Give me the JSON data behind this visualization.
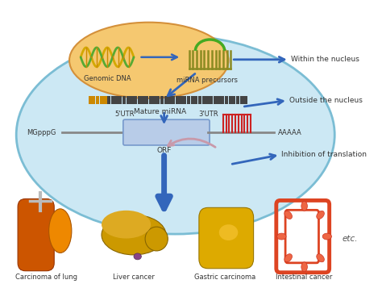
{
  "labels": {
    "genomic_dna": "Genomic DNA",
    "mirna_precursors": "miRNA precursors",
    "within_nucleus": "Within the nucleus",
    "outside_nucleus": "Outside the nucleus",
    "mature_mirna": "Mature miRNA",
    "mgpppg": "MGpppG",
    "five_utr": "5'UTR",
    "three_utr": "3'UTR",
    "aaaaaa": "AAAAA",
    "orf": "ORF",
    "inhibition": "Inhibition of translation",
    "lung": "Carcinoma of lung",
    "liver": "Liver cancer",
    "gastric": "Gastric carcinoma",
    "intestinal": "Intestinal cancer",
    "etc": "etc."
  },
  "arrow_color": "#3366bb",
  "arrow_color2": "#d4a0b8"
}
